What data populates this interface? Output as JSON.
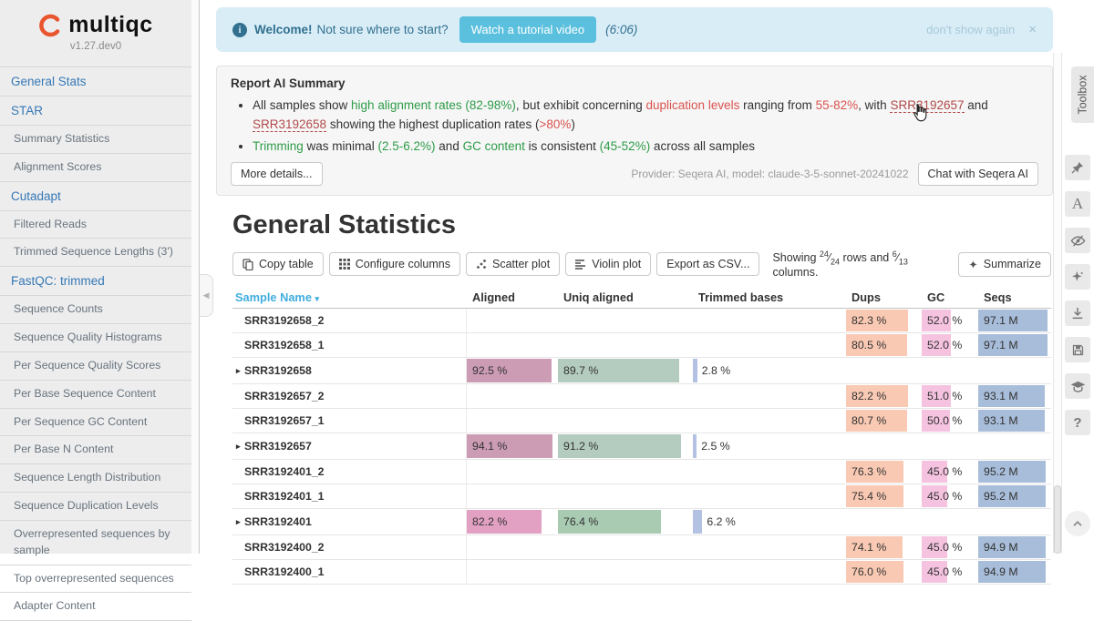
{
  "sidebar": {
    "logo_text": "multiqc",
    "version": "v1.27.dev0",
    "items": [
      {
        "label": "General Stats",
        "level": "top"
      },
      {
        "label": "STAR",
        "level": "top"
      },
      {
        "label": "Summary Statistics",
        "level": "sub"
      },
      {
        "label": "Alignment Scores",
        "level": "sub"
      },
      {
        "label": "Cutadapt",
        "level": "top"
      },
      {
        "label": "Filtered Reads",
        "level": "sub"
      },
      {
        "label": "Trimmed Sequence Lengths (3')",
        "level": "sub"
      },
      {
        "label": "FastQC: trimmed",
        "level": "top"
      },
      {
        "label": "Sequence Counts",
        "level": "sub"
      },
      {
        "label": "Sequence Quality Histograms",
        "level": "sub"
      },
      {
        "label": "Per Sequence Quality Scores",
        "level": "sub"
      },
      {
        "label": "Per Base Sequence Content",
        "level": "sub"
      },
      {
        "label": "Per Sequence GC Content",
        "level": "sub"
      },
      {
        "label": "Per Base N Content",
        "level": "sub"
      },
      {
        "label": "Sequence Length Distribution",
        "level": "sub"
      },
      {
        "label": "Sequence Duplication Levels",
        "level": "sub"
      },
      {
        "label": "Overrepresented sequences by sample",
        "level": "sub"
      },
      {
        "label": "Top overrepresented sequences",
        "level": "sub"
      },
      {
        "label": "Adapter Content",
        "level": "sub"
      }
    ]
  },
  "welcome_banner": {
    "bold_text": "Welcome!",
    "text": "Not sure where to start?",
    "button_label": "Watch a tutorial video",
    "duration": "(6:06)",
    "dismiss_label": "don't show again",
    "close_label": "×"
  },
  "ai_summary": {
    "title": "Report AI Summary",
    "bullets": [
      [
        {
          "t": "All samples show ",
          "s": "n"
        },
        {
          "t": "high alignment rates",
          "s": "g"
        },
        {
          "t": " ",
          "s": "n"
        },
        {
          "t": "(82-98%)",
          "s": "g"
        },
        {
          "t": ", but exhibit concerning ",
          "s": "n"
        },
        {
          "t": "duplication levels",
          "s": "r"
        },
        {
          "t": " ranging from ",
          "s": "n"
        },
        {
          "t": "55-82%",
          "s": "r"
        },
        {
          "t": ", with ",
          "s": "n"
        },
        {
          "t": "SRR3192657",
          "s": "l"
        },
        {
          "t": " and ",
          "s": "n"
        },
        {
          "t": "SRR3192658",
          "s": "l"
        },
        {
          "t": " showing the highest duplication rates (",
          "s": "n"
        },
        {
          "t": ">80%",
          "s": "r"
        },
        {
          "t": ")",
          "s": "n"
        }
      ],
      [
        {
          "t": "Trimming",
          "s": "g"
        },
        {
          "t": " was minimal ",
          "s": "n"
        },
        {
          "t": "(2.5-6.2%)",
          "s": "g"
        },
        {
          "t": " and ",
          "s": "n"
        },
        {
          "t": "GC content",
          "s": "g"
        },
        {
          "t": " is consistent ",
          "s": "n"
        },
        {
          "t": "(45-52%)",
          "s": "g"
        },
        {
          "t": " across all samples",
          "s": "n"
        }
      ]
    ],
    "more_details_label": "More details...",
    "provider_text": "Provider: Seqera AI, model: claude-3-5-sonnet-20241022",
    "chat_label": "Chat with Seqera AI"
  },
  "general_stats": {
    "title": "General Statistics",
    "buttons": {
      "copy": "Copy table",
      "configure": "Configure columns",
      "scatter": "Scatter plot",
      "violin": "Violin plot",
      "export": "Export as CSV...",
      "summarize": "Summarize",
      "summarize_icon": "✦"
    },
    "showing": {
      "prefix": "Showing",
      "rows_shown": "24",
      "rows_total": "24",
      "mid": "rows and",
      "cols_shown": "6",
      "cols_total": "13",
      "suffix": "columns."
    }
  },
  "table": {
    "columns": [
      {
        "label": "Sample Name",
        "key": "sample",
        "sort_caret": "▾"
      },
      {
        "label": "Aligned",
        "key": "aligned"
      },
      {
        "label": "Uniq aligned",
        "key": "uniq"
      },
      {
        "label": "Trimmed bases",
        "key": "trimmed"
      },
      {
        "label": "Dups",
        "key": "dups"
      },
      {
        "label": "GC",
        "key": "gc"
      },
      {
        "label": "Seqs",
        "key": "seqs"
      }
    ],
    "colors": {
      "dups": "#f9c9b3",
      "gc": "#f5c2e0",
      "seqs": "#a7bdd9",
      "trimmed": "#b3c1e3"
    },
    "rows": [
      {
        "name": "SRR3192658_2",
        "group": false,
        "dups": {
          "text": "82.3 %",
          "pct": 82.3
        },
        "gc": {
          "text": "52.0 %",
          "pct": 52
        },
        "seqs": {
          "text": "97.1 M",
          "pct": 95
        }
      },
      {
        "name": "SRR3192658_1",
        "group": false,
        "dups": {
          "text": "80.5 %",
          "pct": 80.5
        },
        "gc": {
          "text": "52.0 %",
          "pct": 52
        },
        "seqs": {
          "text": "97.1 M",
          "pct": 95
        }
      },
      {
        "name": "SRR3192658",
        "group": true,
        "aligned": {
          "text": "92.5 %",
          "pct": 92.5,
          "color": "#cc9cb4"
        },
        "uniq": {
          "text": "89.7 %",
          "pct": 89.7,
          "color": "#b4ccbf"
        },
        "trimmed": {
          "text": "2.8 %",
          "pct": 2.8
        }
      },
      {
        "name": "SRR3192657_2",
        "group": false,
        "dups": {
          "text": "82.2 %",
          "pct": 82.2
        },
        "gc": {
          "text": "51.0 %",
          "pct": 51
        },
        "seqs": {
          "text": "93.1 M",
          "pct": 91
        }
      },
      {
        "name": "SRR3192657_1",
        "group": false,
        "dups": {
          "text": "80.7 %",
          "pct": 80.7
        },
        "gc": {
          "text": "50.0 %",
          "pct": 50
        },
        "seqs": {
          "text": "93.1 M",
          "pct": 91
        }
      },
      {
        "name": "SRR3192657",
        "group": true,
        "aligned": {
          "text": "94.1 %",
          "pct": 94.1,
          "color": "#cc9cb4"
        },
        "uniq": {
          "text": "91.2 %",
          "pct": 91.2,
          "color": "#b4ccbf"
        },
        "trimmed": {
          "text": "2.5 %",
          "pct": 2.5
        }
      },
      {
        "name": "SRR3192401_2",
        "group": false,
        "dups": {
          "text": "76.3 %",
          "pct": 76.3
        },
        "gc": {
          "text": "45.0 %",
          "pct": 45
        },
        "seqs": {
          "text": "95.2 M",
          "pct": 93
        }
      },
      {
        "name": "SRR3192401_1",
        "group": false,
        "dups": {
          "text": "75.4 %",
          "pct": 75.4
        },
        "gc": {
          "text": "45.0 %",
          "pct": 45
        },
        "seqs": {
          "text": "95.2 M",
          "pct": 93
        }
      },
      {
        "name": "SRR3192401",
        "group": true,
        "aligned": {
          "text": "82.2 %",
          "pct": 82.2,
          "color": "#e2a0c3"
        },
        "uniq": {
          "text": "76.4 %",
          "pct": 76.4,
          "color": "#a8cbb2"
        },
        "trimmed": {
          "text": "6.2 %",
          "pct": 6.2
        }
      },
      {
        "name": "SRR3192400_2",
        "group": false,
        "dups": {
          "text": "74.1 %",
          "pct": 74.1
        },
        "gc": {
          "text": "45.0 %",
          "pct": 45
        },
        "seqs": {
          "text": "94.9 M",
          "pct": 93
        }
      },
      {
        "name": "SRR3192400_1",
        "group": false,
        "dups": {
          "text": "76.0 %",
          "pct": 76
        },
        "gc": {
          "text": "45.0 %",
          "pct": 45
        },
        "seqs": {
          "text": "94.9 M",
          "pct": 93
        }
      }
    ]
  },
  "toolbox": {
    "label": "Toolbox",
    "icons": [
      "pin-icon",
      "text-rename-icon",
      "hide-samples-icon",
      "ai-sparkle-icon",
      "download-icon",
      "save-icon",
      "tutorial-cap-icon",
      "help-icon",
      "scroll-top-icon"
    ]
  }
}
